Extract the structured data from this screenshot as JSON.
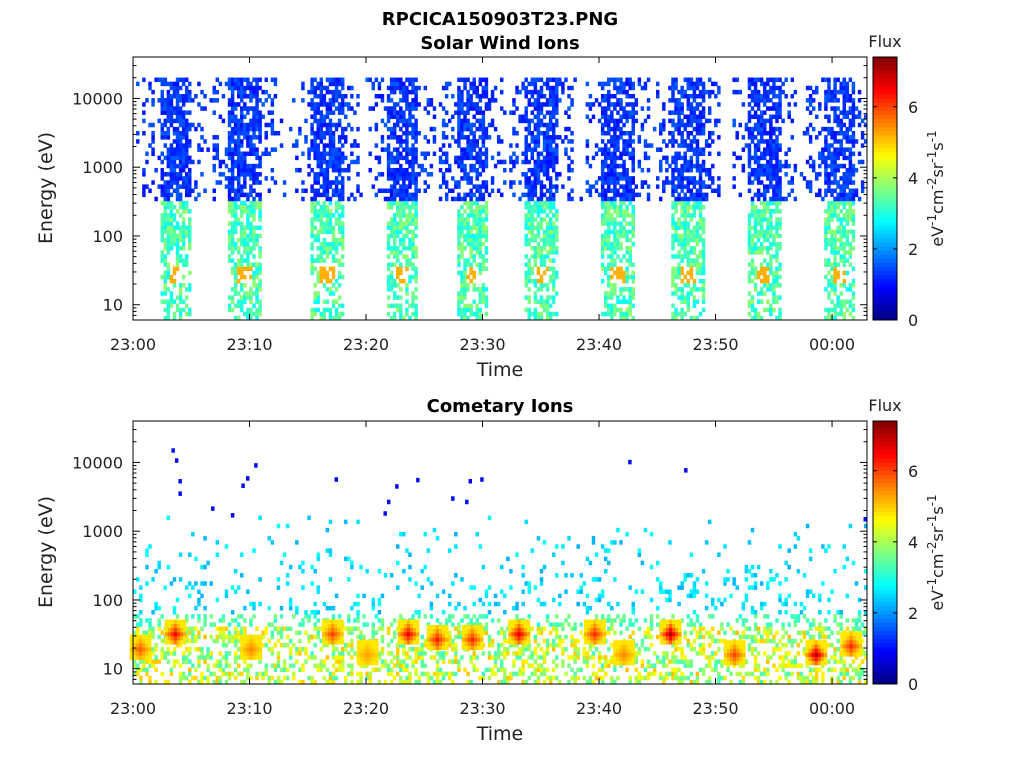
{
  "figure": {
    "title": "RPCICA150903T23.PNG"
  },
  "colors": {
    "colormap": [
      "#00007f",
      "#0000ff",
      "#007fff",
      "#00ffff",
      "#7fff7f",
      "#ffff00",
      "#ff7f00",
      "#ff0000",
      "#7f0000"
    ],
    "axis": "#000000",
    "background": "#ffffff"
  },
  "chart_data": [
    {
      "type": "heatmap",
      "title": "Solar Wind Ions",
      "xlabel": "Time",
      "ylabel": "Energy (eV)",
      "yscale": "log",
      "ylim": [
        6,
        40000
      ],
      "xlim_minutes": [
        0,
        63
      ],
      "x_ticks": [
        {
          "label": "23:00",
          "minutes": 0
        },
        {
          "label": "23:10",
          "minutes": 10
        },
        {
          "label": "23:20",
          "minutes": 20
        },
        {
          "label": "23:30",
          "minutes": 30
        },
        {
          "label": "23:40",
          "minutes": 40
        },
        {
          "label": "23:50",
          "minutes": 50
        },
        {
          "label": "00:00",
          "minutes": 60
        }
      ],
      "y_ticks": [
        {
          "label": "10",
          "value": 10
        },
        {
          "label": "100",
          "value": 100
        },
        {
          "label": "1000",
          "value": 1000
        },
        {
          "label": "10000",
          "value": 10000
        }
      ],
      "colorbar": {
        "label": "Flux",
        "units": "eV-1cm-2sr-1s-1",
        "min": 0,
        "max": 7.4,
        "ticks": [
          "0",
          "2",
          "4",
          "6"
        ]
      },
      "bursts_minutes": [
        3.5,
        9.5,
        16.5,
        23,
        29,
        35,
        41.5,
        47.5,
        54,
        60.5
      ],
      "features": {
        "high_energy_range_eV": [
          300,
          20000
        ],
        "high_energy_flux": 1.0,
        "low_energy_range_eV": [
          6,
          300
        ],
        "low_energy_flux": 2.8,
        "peak_flux": 5.2,
        "peak_energy_eV": 25
      }
    },
    {
      "type": "heatmap",
      "title": "Cometary Ions",
      "xlabel": "Time",
      "ylabel": "Energy (eV)",
      "yscale": "log",
      "ylim": [
        6,
        40000
      ],
      "xlim_minutes": [
        0,
        63
      ],
      "x_ticks": [
        {
          "label": "23:00",
          "minutes": 0
        },
        {
          "label": "23:10",
          "minutes": 10
        },
        {
          "label": "23:20",
          "minutes": 20
        },
        {
          "label": "23:30",
          "minutes": 30
        },
        {
          "label": "23:40",
          "minutes": 40
        },
        {
          "label": "23:50",
          "minutes": 50
        },
        {
          "label": "00:00",
          "minutes": 60
        }
      ],
      "y_ticks": [
        {
          "label": "10",
          "value": 10
        },
        {
          "label": "100",
          "value": 100
        },
        {
          "label": "1000",
          "value": 1000
        },
        {
          "label": "10000",
          "value": 10000
        }
      ],
      "colorbar": {
        "label": "Flux",
        "units": "eV-1cm-2sr-1s-1",
        "min": 0,
        "max": 7.4,
        "ticks": [
          "0",
          "2",
          "4",
          "6"
        ]
      },
      "hotspots": [
        {
          "minutes": 0.5,
          "energy_eV": 18,
          "flux": 5.8
        },
        {
          "minutes": 3.5,
          "energy_eV": 30,
          "flux": 6.5
        },
        {
          "minutes": 10,
          "energy_eV": 18,
          "flux": 5.5
        },
        {
          "minutes": 17,
          "energy_eV": 30,
          "flux": 6.0
        },
        {
          "minutes": 20,
          "energy_eV": 15,
          "flux": 5.3
        },
        {
          "minutes": 23.5,
          "energy_eV": 30,
          "flux": 6.6
        },
        {
          "minutes": 26,
          "energy_eV": 25,
          "flux": 6.3
        },
        {
          "minutes": 29,
          "energy_eV": 25,
          "flux": 6.2
        },
        {
          "minutes": 33,
          "energy_eV": 30,
          "flux": 6.7
        },
        {
          "minutes": 39.5,
          "energy_eV": 30,
          "flux": 6.2
        },
        {
          "minutes": 42,
          "energy_eV": 15,
          "flux": 5.5
        },
        {
          "minutes": 46,
          "energy_eV": 30,
          "flux": 7.0
        },
        {
          "minutes": 51.5,
          "energy_eV": 15,
          "flux": 6.0
        },
        {
          "minutes": 58.5,
          "energy_eV": 15,
          "flux": 7.0
        },
        {
          "minutes": 61.5,
          "energy_eV": 20,
          "flux": 6.2
        }
      ],
      "sparse_points": [
        {
          "minutes": 3.3,
          "energy_eV": 14000
        },
        {
          "minutes": 3.6,
          "energy_eV": 10000
        },
        {
          "minutes": 3.9,
          "energy_eV": 5000
        },
        {
          "minutes": 3.9,
          "energy_eV": 3300
        },
        {
          "minutes": 6.7,
          "energy_eV": 2000
        },
        {
          "minutes": 8.4,
          "energy_eV": 1600
        },
        {
          "minutes": 9.3,
          "energy_eV": 4300
        },
        {
          "minutes": 9.7,
          "energy_eV": 5500
        },
        {
          "minutes": 10.4,
          "energy_eV": 8500
        },
        {
          "minutes": 17.3,
          "energy_eV": 5300
        },
        {
          "minutes": 21.5,
          "energy_eV": 1700
        },
        {
          "minutes": 21.8,
          "energy_eV": 2500
        },
        {
          "minutes": 22.5,
          "energy_eV": 4200
        },
        {
          "minutes": 24.3,
          "energy_eV": 5200
        },
        {
          "minutes": 27.3,
          "energy_eV": 2800
        },
        {
          "minutes": 28.5,
          "energy_eV": 2500
        },
        {
          "minutes": 28.8,
          "energy_eV": 5000
        },
        {
          "minutes": 29.8,
          "energy_eV": 5300
        },
        {
          "minutes": 42.5,
          "energy_eV": 9500
        },
        {
          "minutes": 47.3,
          "energy_eV": 7200
        },
        {
          "minutes": 62.7,
          "energy_eV": 1400
        }
      ],
      "features": {
        "sparse_range_eV": [
          60,
          1500
        ],
        "sparse_flux": 2.6,
        "core_range_eV": [
          6,
          40
        ],
        "core_flux": 4.5
      }
    }
  ]
}
